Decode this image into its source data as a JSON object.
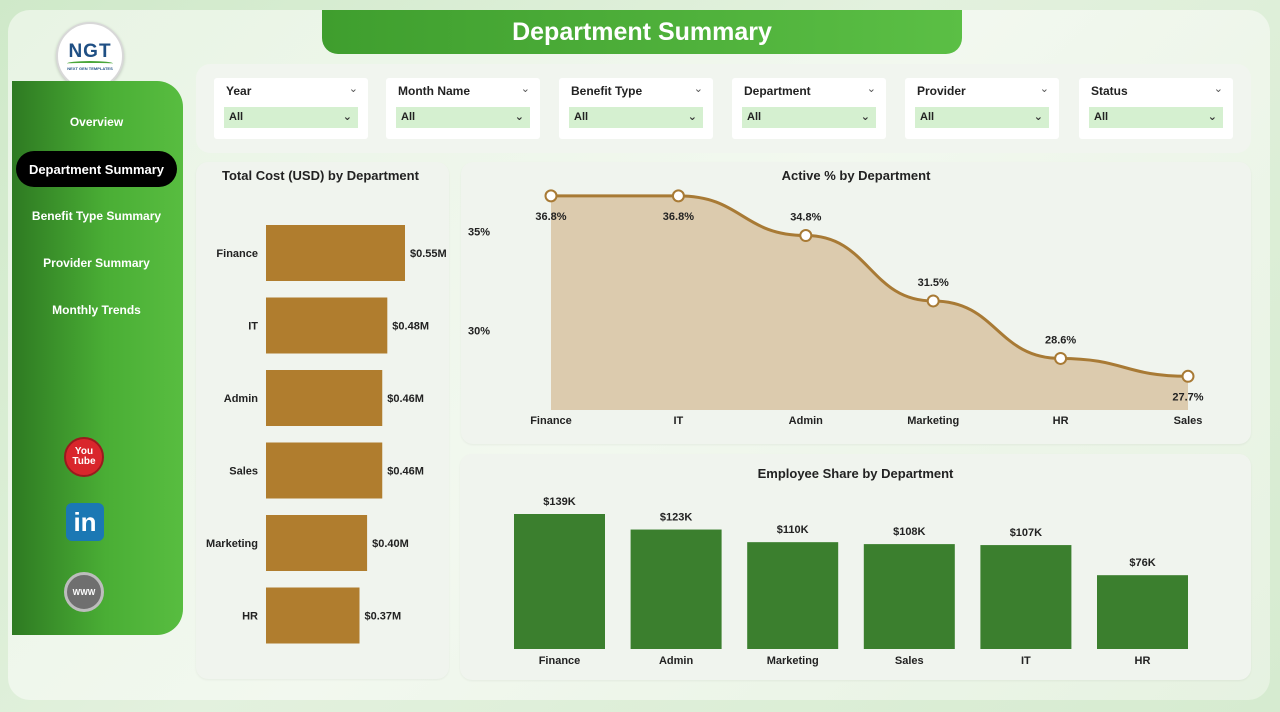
{
  "title": "Department Summary",
  "logo": {
    "text": "NGT",
    "subtext": "NEXT GEN TEMPLATES"
  },
  "nav": [
    {
      "label": "Overview",
      "active": false
    },
    {
      "label": "Department Summary",
      "active": true
    },
    {
      "label": "Benefit Type Summary",
      "active": false
    },
    {
      "label": "Provider Summary",
      "active": false
    },
    {
      "label": "Monthly Trends",
      "active": false
    }
  ],
  "social": {
    "youtube_top": "You",
    "youtube_bottom": "Tube",
    "linkedin": "in",
    "web": "WWW"
  },
  "filters": [
    {
      "label": "Year",
      "value": "All"
    },
    {
      "label": "Month Name",
      "value": "All"
    },
    {
      "label": "Benefit Type",
      "value": "All"
    },
    {
      "label": "Department",
      "value": "All"
    },
    {
      "label": "Provider",
      "value": "All"
    },
    {
      "label": "Status",
      "value": "All"
    }
  ],
  "colors": {
    "accent_green": "#3b7f2e",
    "bar_brown": "#b07d2e",
    "area_fill": "#dccbae",
    "line_brown": "#a87a35"
  },
  "chart_data": [
    {
      "type": "bar",
      "orientation": "horizontal",
      "title": "Total Cost (USD) by Department",
      "categories": [
        "Finance",
        "IT",
        "Admin",
        "Sales",
        "Marketing",
        "HR"
      ],
      "values": [
        0.55,
        0.48,
        0.46,
        0.46,
        0.4,
        0.37
      ],
      "labels": [
        "$0.55M",
        "$0.48M",
        "$0.46M",
        "$0.46M",
        "$0.40M",
        "$0.37M"
      ],
      "unit": "USD millions"
    },
    {
      "type": "area",
      "title": "Active % by Department",
      "categories": [
        "Finance",
        "IT",
        "Admin",
        "Marketing",
        "HR",
        "Sales"
      ],
      "values": [
        36.8,
        36.8,
        34.8,
        31.5,
        28.6,
        27.7
      ],
      "labels": [
        "36.8%",
        "36.8%",
        "34.8%",
        "31.5%",
        "28.6%",
        "27.7%"
      ],
      "yticks": [
        "35%",
        "30%"
      ],
      "ylim": [
        26,
        37.5
      ]
    },
    {
      "type": "bar",
      "orientation": "vertical",
      "title": "Employee Share by Department",
      "categories": [
        "Finance",
        "Admin",
        "Marketing",
        "Sales",
        "IT",
        "HR"
      ],
      "values": [
        139,
        123,
        110,
        108,
        107,
        76
      ],
      "labels": [
        "$139K",
        "$123K",
        "$110K",
        "$108K",
        "$107K",
        "$76K"
      ],
      "unit": "USD thousands"
    }
  ]
}
